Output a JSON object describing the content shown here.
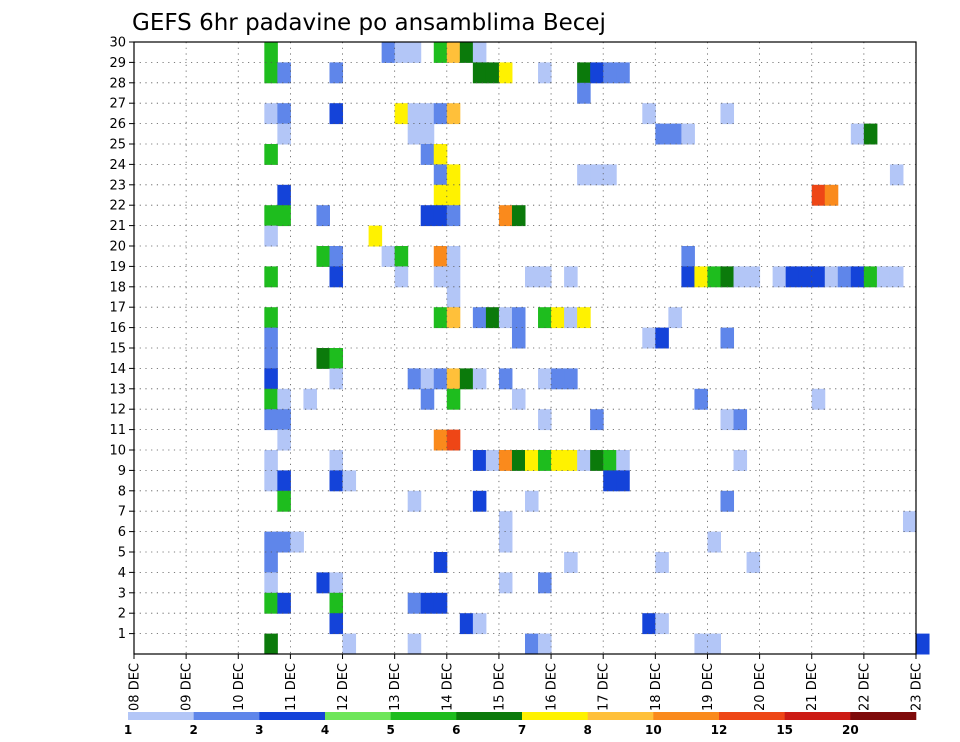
{
  "chart_data": {
    "type": "heatmap",
    "title": "GEFS 6hr padavine po ansamblima Becej",
    "x_ticks": [
      "08 DEC",
      "09 DEC",
      "10 DEC",
      "11 DEC",
      "12 DEC",
      "13 DEC",
      "14 DEC",
      "15 DEC",
      "16 DEC",
      "17 DEC",
      "18 DEC",
      "19 DEC",
      "20 DEC",
      "21 DEC",
      "22 DEC",
      "23 DEC"
    ],
    "y_ticks": [
      "1",
      "2",
      "3",
      "4",
      "5",
      "6",
      "7",
      "8",
      "9",
      "10",
      "11",
      "12",
      "13",
      "14",
      "15",
      "16",
      "17",
      "18",
      "19",
      "20",
      "21",
      "22",
      "23",
      "24",
      "25",
      "26",
      "27",
      "28",
      "29",
      "30"
    ],
    "xlim": [
      "08 DEC",
      "23 DEC"
    ],
    "ylim": [
      0,
      30
    ],
    "grid": true,
    "colorbar": {
      "labels": [
        "1",
        "2",
        "3",
        "4",
        "5",
        "6",
        "7",
        "8",
        "10",
        "12",
        "15",
        "20"
      ],
      "colors": [
        "#b3c6f7",
        "#5f86ea",
        "#1443d9",
        "#6ee65a",
        "#1ebd1e",
        "#0b7a0b",
        "#fff200",
        "#ffc03a",
        "#fa8a1c",
        "#ee4616",
        "#cc1b14",
        "#7e0a0a"
      ]
    },
    "cells": [
      {
        "x": "10 DEC 12Z",
        "y": 30,
        "v": 5
      },
      {
        "x": "12 DEC 18Z",
        "y": 30,
        "v": 2
      },
      {
        "x": "13 DEC 00Z",
        "y": 30,
        "v": 1
      },
      {
        "x": "13 DEC 06Z",
        "y": 30,
        "v": 1
      },
      {
        "x": "13 DEC 18Z",
        "y": 30,
        "v": 5
      },
      {
        "x": "14 DEC 00Z",
        "y": 30,
        "v": 8
      },
      {
        "x": "14 DEC 06Z",
        "y": 30,
        "v": 6
      },
      {
        "x": "14 DEC 12Z",
        "y": 30,
        "v": 1
      },
      {
        "x": "10 DEC 12Z",
        "y": 29,
        "v": 5
      },
      {
        "x": "10 DEC 18Z",
        "y": 29,
        "v": 2
      },
      {
        "x": "11 DEC 18Z",
        "y": 29,
        "v": 2
      },
      {
        "x": "14 DEC 12Z",
        "y": 29,
        "v": 6
      },
      {
        "x": "14 DEC 18Z",
        "y": 29,
        "v": 6
      },
      {
        "x": "15 DEC 00Z",
        "y": 29,
        "v": 7
      },
      {
        "x": "15 DEC 18Z",
        "y": 29,
        "v": 1
      },
      {
        "x": "16 DEC 12Z",
        "y": 29,
        "v": 6
      },
      {
        "x": "16 DEC 18Z",
        "y": 29,
        "v": 3
      },
      {
        "x": "17 DEC 00Z",
        "y": 29,
        "v": 2
      },
      {
        "x": "17 DEC 06Z",
        "y": 29,
        "v": 2
      },
      {
        "x": "16 DEC 12Z",
        "y": 28,
        "v": 2
      },
      {
        "x": "10 DEC 12Z",
        "y": 27,
        "v": 1
      },
      {
        "x": "10 DEC 18Z",
        "y": 27,
        "v": 2
      },
      {
        "x": "11 DEC 18Z",
        "y": 27,
        "v": 3
      },
      {
        "x": "13 DEC 00Z",
        "y": 27,
        "v": 7
      },
      {
        "x": "13 DEC 06Z",
        "y": 27,
        "v": 1
      },
      {
        "x": "13 DEC 12Z",
        "y": 27,
        "v": 1
      },
      {
        "x": "13 DEC 18Z",
        "y": 27,
        "v": 2
      },
      {
        "x": "14 DEC 00Z",
        "y": 27,
        "v": 8
      },
      {
        "x": "17 DEC 18Z",
        "y": 27,
        "v": 1
      },
      {
        "x": "19 DEC 06Z",
        "y": 27,
        "v": 1
      },
      {
        "x": "10 DEC 18Z",
        "y": 26,
        "v": 1
      },
      {
        "x": "13 DEC 06Z",
        "y": 26,
        "v": 1
      },
      {
        "x": "13 DEC 12Z",
        "y": 26,
        "v": 1
      },
      {
        "x": "18 DEC 00Z",
        "y": 26,
        "v": 2
      },
      {
        "x": "18 DEC 06Z",
        "y": 26,
        "v": 2
      },
      {
        "x": "18 DEC 12Z",
        "y": 26,
        "v": 1
      },
      {
        "x": "21 DEC 18Z",
        "y": 26,
        "v": 1
      },
      {
        "x": "22 DEC 00Z",
        "y": 26,
        "v": 6
      },
      {
        "x": "10 DEC 12Z",
        "y": 25,
        "v": 5
      },
      {
        "x": "13 DEC 12Z",
        "y": 25,
        "v": 2
      },
      {
        "x": "13 DEC 18Z",
        "y": 25,
        "v": 7
      },
      {
        "x": "13 DEC 18Z",
        "y": 24,
        "v": 2
      },
      {
        "x": "14 DEC 00Z",
        "y": 24,
        "v": 7
      },
      {
        "x": "16 DEC 12Z",
        "y": 24,
        "v": 1
      },
      {
        "x": "16 DEC 18Z",
        "y": 24,
        "v": 1
      },
      {
        "x": "17 DEC 00Z",
        "y": 24,
        "v": 1
      },
      {
        "x": "22 DEC 12Z",
        "y": 24,
        "v": 1
      },
      {
        "x": "10 DEC 18Z",
        "y": 23,
        "v": 3
      },
      {
        "x": "13 DEC 18Z",
        "y": 23,
        "v": 7
      },
      {
        "x": "14 DEC 00Z",
        "y": 23,
        "v": 7
      },
      {
        "x": "21 DEC 00Z",
        "y": 23,
        "v": 14
      },
      {
        "x": "21 DEC 06Z",
        "y": 23,
        "v": 10
      },
      {
        "x": "10 DEC 12Z",
        "y": 22,
        "v": 5
      },
      {
        "x": "10 DEC 18Z",
        "y": 22,
        "v": 5
      },
      {
        "x": "11 DEC 12Z",
        "y": 22,
        "v": 2
      },
      {
        "x": "13 DEC 12Z",
        "y": 22,
        "v": 3
      },
      {
        "x": "13 DEC 18Z",
        "y": 22,
        "v": 3
      },
      {
        "x": "14 DEC 00Z",
        "y": 22,
        "v": 2
      },
      {
        "x": "15 DEC 00Z",
        "y": 22,
        "v": 10
      },
      {
        "x": "15 DEC 06Z",
        "y": 22,
        "v": 6
      },
      {
        "x": "10 DEC 12Z",
        "y": 21,
        "v": 1
      },
      {
        "x": "12 DEC 12Z",
        "y": 21,
        "v": 7
      },
      {
        "x": "11 DEC 12Z",
        "y": 20,
        "v": 5
      },
      {
        "x": "11 DEC 18Z",
        "y": 20,
        "v": 2
      },
      {
        "x": "12 DEC 18Z",
        "y": 20,
        "v": 1
      },
      {
        "x": "13 DEC 00Z",
        "y": 20,
        "v": 5
      },
      {
        "x": "13 DEC 18Z",
        "y": 20,
        "v": 10
      },
      {
        "x": "14 DEC 00Z",
        "y": 20,
        "v": 1
      },
      {
        "x": "18 DEC 12Z",
        "y": 20,
        "v": 2
      },
      {
        "x": "10 DEC 12Z",
        "y": 19,
        "v": 5
      },
      {
        "x": "11 DEC 18Z",
        "y": 19,
        "v": 3
      },
      {
        "x": "13 DEC 00Z",
        "y": 19,
        "v": 1
      },
      {
        "x": "13 DEC 18Z",
        "y": 19,
        "v": 1
      },
      {
        "x": "14 DEC 00Z",
        "y": 19,
        "v": 1
      },
      {
        "x": "15 DEC 12Z",
        "y": 19,
        "v": 1
      },
      {
        "x": "15 DEC 18Z",
        "y": 19,
        "v": 1
      },
      {
        "x": "16 DEC 06Z",
        "y": 19,
        "v": 1
      },
      {
        "x": "18 DEC 12Z",
        "y": 19,
        "v": 3
      },
      {
        "x": "18 DEC 18Z",
        "y": 19,
        "v": 7
      },
      {
        "x": "19 DEC 00Z",
        "y": 19,
        "v": 5
      },
      {
        "x": "19 DEC 06Z",
        "y": 19,
        "v": 6
      },
      {
        "x": "19 DEC 12Z",
        "y": 19,
        "v": 1
      },
      {
        "x": "19 DEC 18Z",
        "y": 19,
        "v": 1
      },
      {
        "x": "20 DEC 06Z",
        "y": 19,
        "v": 1
      },
      {
        "x": "20 DEC 12Z",
        "y": 19,
        "v": 3
      },
      {
        "x": "20 DEC 18Z",
        "y": 19,
        "v": 3
      },
      {
        "x": "21 DEC 00Z",
        "y": 19,
        "v": 3
      },
      {
        "x": "21 DEC 06Z",
        "y": 19,
        "v": 1
      },
      {
        "x": "21 DEC 12Z",
        "y": 19,
        "v": 2
      },
      {
        "x": "21 DEC 18Z",
        "y": 19,
        "v": 3
      },
      {
        "x": "22 DEC 00Z",
        "y": 19,
        "v": 5
      },
      {
        "x": "22 DEC 06Z",
        "y": 19,
        "v": 1
      },
      {
        "x": "22 DEC 12Z",
        "y": 19,
        "v": 1
      },
      {
        "x": "14 DEC 00Z",
        "y": 18,
        "v": 1
      },
      {
        "x": "10 DEC 12Z",
        "y": 17,
        "v": 5
      },
      {
        "x": "13 DEC 18Z",
        "y": 17,
        "v": 5
      },
      {
        "x": "14 DEC 00Z",
        "y": 17,
        "v": 8
      },
      {
        "x": "14 DEC 12Z",
        "y": 17,
        "v": 2
      },
      {
        "x": "14 DEC 18Z",
        "y": 17,
        "v": 6
      },
      {
        "x": "15 DEC 00Z",
        "y": 17,
        "v": 1
      },
      {
        "x": "15 DEC 06Z",
        "y": 17,
        "v": 2
      },
      {
        "x": "15 DEC 18Z",
        "y": 17,
        "v": 5
      },
      {
        "x": "16 DEC 00Z",
        "y": 17,
        "v": 7
      },
      {
        "x": "16 DEC 06Z",
        "y": 17,
        "v": 1
      },
      {
        "x": "16 DEC 12Z",
        "y": 17,
        "v": 7
      },
      {
        "x": "18 DEC 06Z",
        "y": 17,
        "v": 1
      },
      {
        "x": "10 DEC 12Z",
        "y": 16,
        "v": 2
      },
      {
        "x": "15 DEC 06Z",
        "y": 16,
        "v": 2
      },
      {
        "x": "17 DEC 18Z",
        "y": 16,
        "v": 1
      },
      {
        "x": "18 DEC 00Z",
        "y": 16,
        "v": 3
      },
      {
        "x": "19 DEC 06Z",
        "y": 16,
        "v": 2
      },
      {
        "x": "10 DEC 12Z",
        "y": 15,
        "v": 2
      },
      {
        "x": "11 DEC 12Z",
        "y": 15,
        "v": 6
      },
      {
        "x": "11 DEC 18Z",
        "y": 15,
        "v": 5
      },
      {
        "x": "10 DEC 12Z",
        "y": 14,
        "v": 3
      },
      {
        "x": "11 DEC 18Z",
        "y": 14,
        "v": 1
      },
      {
        "x": "13 DEC 06Z",
        "y": 14,
        "v": 2
      },
      {
        "x": "13 DEC 12Z",
        "y": 14,
        "v": 1
      },
      {
        "x": "13 DEC 18Z",
        "y": 14,
        "v": 2
      },
      {
        "x": "14 DEC 00Z",
        "y": 14,
        "v": 8
      },
      {
        "x": "14 DEC 06Z",
        "y": 14,
        "v": 6
      },
      {
        "x": "14 DEC 12Z",
        "y": 14,
        "v": 1
      },
      {
        "x": "15 DEC 00Z",
        "y": 14,
        "v": 2
      },
      {
        "x": "15 DEC 18Z",
        "y": 14,
        "v": 1
      },
      {
        "x": "16 DEC 00Z",
        "y": 14,
        "v": 2
      },
      {
        "x": "16 DEC 06Z",
        "y": 14,
        "v": 2
      },
      {
        "x": "10 DEC 12Z",
        "y": 13,
        "v": 5
      },
      {
        "x": "10 DEC 18Z",
        "y": 13,
        "v": 1
      },
      {
        "x": "11 DEC 06Z",
        "y": 13,
        "v": 1
      },
      {
        "x": "13 DEC 12Z",
        "y": 13,
        "v": 2
      },
      {
        "x": "14 DEC 00Z",
        "y": 13,
        "v": 5
      },
      {
        "x": "15 DEC 06Z",
        "y": 13,
        "v": 1
      },
      {
        "x": "18 DEC 18Z",
        "y": 13,
        "v": 2
      },
      {
        "x": "21 DEC 00Z",
        "y": 13,
        "v": 1
      },
      {
        "x": "10 DEC 12Z",
        "y": 12,
        "v": 2
      },
      {
        "x": "10 DEC 18Z",
        "y": 12,
        "v": 2
      },
      {
        "x": "15 DEC 18Z",
        "y": 12,
        "v": 1
      },
      {
        "x": "16 DEC 18Z",
        "y": 12,
        "v": 2
      },
      {
        "x": "19 DEC 06Z",
        "y": 12,
        "v": 1
      },
      {
        "x": "19 DEC 12Z",
        "y": 12,
        "v": 2
      },
      {
        "x": "10 DEC 18Z",
        "y": 11,
        "v": 1
      },
      {
        "x": "13 DEC 18Z",
        "y": 11,
        "v": 10
      },
      {
        "x": "14 DEC 00Z",
        "y": 11,
        "v": 13
      },
      {
        "x": "10 DEC 12Z",
        "y": 10,
        "v": 1
      },
      {
        "x": "11 DEC 18Z",
        "y": 10,
        "v": 1
      },
      {
        "x": "14 DEC 12Z",
        "y": 10,
        "v": 3
      },
      {
        "x": "14 DEC 18Z",
        "y": 10,
        "v": 1
      },
      {
        "x": "15 DEC 00Z",
        "y": 10,
        "v": 10
      },
      {
        "x": "15 DEC 06Z",
        "y": 10,
        "v": 6
      },
      {
        "x": "15 DEC 12Z",
        "y": 10,
        "v": 7
      },
      {
        "x": "15 DEC 18Z",
        "y": 10,
        "v": 5
      },
      {
        "x": "16 DEC 00Z",
        "y": 10,
        "v": 7
      },
      {
        "x": "16 DEC 06Z",
        "y": 10,
        "v": 7
      },
      {
        "x": "16 DEC 12Z",
        "y": 10,
        "v": 1
      },
      {
        "x": "16 DEC 18Z",
        "y": 10,
        "v": 6
      },
      {
        "x": "17 DEC 00Z",
        "y": 10,
        "v": 5
      },
      {
        "x": "17 DEC 06Z",
        "y": 10,
        "v": 1
      },
      {
        "x": "19 DEC 12Z",
        "y": 10,
        "v": 1
      },
      {
        "x": "10 DEC 12Z",
        "y": 9,
        "v": 1
      },
      {
        "x": "10 DEC 18Z",
        "y": 9,
        "v": 3
      },
      {
        "x": "11 DEC 18Z",
        "y": 9,
        "v": 3
      },
      {
        "x": "12 DEC 00Z",
        "y": 9,
        "v": 1
      },
      {
        "x": "17 DEC 00Z",
        "y": 9,
        "v": 3
      },
      {
        "x": "17 DEC 06Z",
        "y": 9,
        "v": 3
      },
      {
        "x": "10 DEC 18Z",
        "y": 8,
        "v": 5
      },
      {
        "x": "13 DEC 06Z",
        "y": 8,
        "v": 1
      },
      {
        "x": "14 DEC 12Z",
        "y": 8,
        "v": 3
      },
      {
        "x": "15 DEC 12Z",
        "y": 8,
        "v": 1
      },
      {
        "x": "19 DEC 06Z",
        "y": 8,
        "v": 2
      },
      {
        "x": "15 DEC 00Z",
        "y": 7,
        "v": 1
      },
      {
        "x": "22 DEC 18Z",
        "y": 7,
        "v": 1
      },
      {
        "x": "10 DEC 12Z",
        "y": 6,
        "v": 2
      },
      {
        "x": "10 DEC 18Z",
        "y": 6,
        "v": 2
      },
      {
        "x": "11 DEC 00Z",
        "y": 6,
        "v": 1
      },
      {
        "x": "15 DEC 00Z",
        "y": 6,
        "v": 1
      },
      {
        "x": "19 DEC 00Z",
        "y": 6,
        "v": 1
      },
      {
        "x": "10 DEC 12Z",
        "y": 5,
        "v": 2
      },
      {
        "x": "13 DEC 18Z",
        "y": 5,
        "v": 3
      },
      {
        "x": "16 DEC 06Z",
        "y": 5,
        "v": 1
      },
      {
        "x": "18 DEC 00Z",
        "y": 5,
        "v": 1
      },
      {
        "x": "19 DEC 18Z",
        "y": 5,
        "v": 1
      },
      {
        "x": "10 DEC 12Z",
        "y": 4,
        "v": 1
      },
      {
        "x": "11 DEC 12Z",
        "y": 4,
        "v": 3
      },
      {
        "x": "11 DEC 18Z",
        "y": 4,
        "v": 1
      },
      {
        "x": "15 DEC 00Z",
        "y": 4,
        "v": 1
      },
      {
        "x": "15 DEC 18Z",
        "y": 4,
        "v": 2
      },
      {
        "x": "10 DEC 12Z",
        "y": 3,
        "v": 5
      },
      {
        "x": "10 DEC 18Z",
        "y": 3,
        "v": 3
      },
      {
        "x": "11 DEC 18Z",
        "y": 3,
        "v": 5
      },
      {
        "x": "13 DEC 06Z",
        "y": 3,
        "v": 2
      },
      {
        "x": "13 DEC 12Z",
        "y": 3,
        "v": 3
      },
      {
        "x": "13 DEC 18Z",
        "y": 3,
        "v": 3
      },
      {
        "x": "11 DEC 18Z",
        "y": 2,
        "v": 3
      },
      {
        "x": "14 DEC 06Z",
        "y": 2,
        "v": 3
      },
      {
        "x": "14 DEC 12Z",
        "y": 2,
        "v": 1
      },
      {
        "x": "17 DEC 18Z",
        "y": 2,
        "v": 3
      },
      {
        "x": "18 DEC 00Z",
        "y": 2,
        "v": 1
      },
      {
        "x": "10 DEC 12Z",
        "y": 1,
        "v": 6
      },
      {
        "x": "12 DEC 00Z",
        "y": 1,
        "v": 1
      },
      {
        "x": "13 DEC 06Z",
        "y": 1,
        "v": 1
      },
      {
        "x": "15 DEC 12Z",
        "y": 1,
        "v": 2
      },
      {
        "x": "15 DEC 18Z",
        "y": 1,
        "v": 1
      },
      {
        "x": "18 DEC 18Z",
        "y": 1,
        "v": 1
      },
      {
        "x": "19 DEC 00Z",
        "y": 1,
        "v": 1
      },
      {
        "x": "23 DEC 00Z",
        "y": 1,
        "v": 3
      }
    ]
  }
}
